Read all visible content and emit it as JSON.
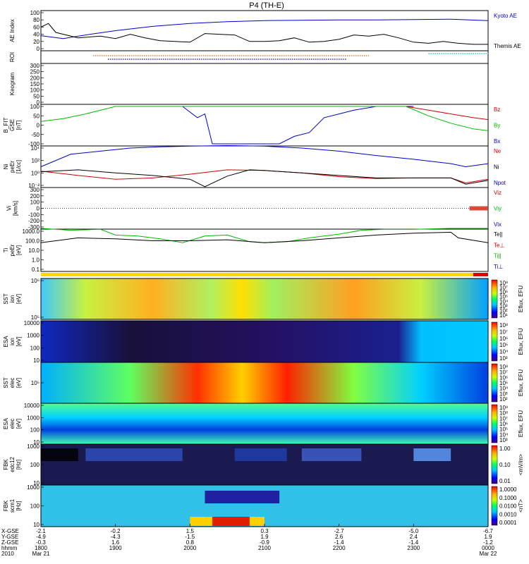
{
  "title": "P4 (TH-E)",
  "panels": [
    {
      "id": "ae",
      "ylabel": "AE Index",
      "yticks": [
        "100",
        "80",
        "60",
        "40",
        "20",
        "0"
      ],
      "legend": [
        {
          "label": "Kyoto AE",
          "color": "#0000cc"
        },
        {
          "label": "Themis AE",
          "color": "#000000"
        }
      ]
    },
    {
      "id": "roi",
      "ylabel": "ROI",
      "yticks": [],
      "legend": []
    },
    {
      "id": "kgram",
      "ylabel": "Keogram",
      "yticks": [
        "300",
        "250",
        "200",
        "150",
        "100",
        "50",
        "0"
      ],
      "legend": []
    },
    {
      "id": "bfit",
      "ylabel": "B_FIT\nGSE\n[nT]",
      "yticks": [
        "100",
        "50",
        "0",
        "-50",
        "-100"
      ],
      "legend": [
        {
          "label": "Bz",
          "color": "#cc0000"
        },
        {
          "label": "By",
          "color": "#00bb00"
        },
        {
          "label": "Bx",
          "color": "#0000cc"
        }
      ]
    },
    {
      "id": "ni",
      "ylabel": "Ni\npeEr\n[1/cc]",
      "yticks": [
        "10⁴",
        "10²",
        "10⁰",
        "10⁻²"
      ],
      "legend": [
        {
          "label": "Ne",
          "color": "#cc0000"
        },
        {
          "label": "Ni",
          "color": "#000000"
        },
        {
          "label": "Npot",
          "color": "#0000cc"
        }
      ]
    },
    {
      "id": "vi",
      "ylabel": "Vi\n[km/s]",
      "yticks": [
        "300",
        "200",
        "100",
        "0",
        "-100",
        "-200",
        "-300"
      ],
      "legend": [
        {
          "label": "Viz",
          "color": "#cc0000"
        },
        {
          "label": "Viy",
          "color": "#00bb00"
        },
        {
          "label": "Vix",
          "color": "#0000cc"
        }
      ]
    },
    {
      "id": "ti",
      "ylabel": "Ti\npeEr\n[eV]",
      "yticks": [
        "1000.0",
        "100.0",
        "10.0",
        "1.0",
        "0.1"
      ],
      "legend": [
        {
          "label": "Te||",
          "color": "#000000"
        },
        {
          "label": "Te⊥",
          "color": "#cc0000"
        },
        {
          "label": "Ti||",
          "color": "#00bb00"
        },
        {
          "label": "Ti⊥",
          "color": "#0000cc"
        }
      ]
    },
    {
      "id": "sst_i",
      "ylabel": "SST\nion\n[eV]",
      "yticks": [
        "10⁶",
        "10⁵"
      ],
      "colorbar": "Eflux, EFU",
      "cbticks": [
        "10⁸",
        "10⁷",
        "10⁶",
        "10⁵",
        "10⁴",
        "10³",
        "10²",
        "10¹"
      ]
    },
    {
      "id": "esa_i",
      "ylabel": "ESA\nion\n[eV]",
      "yticks": [
        "10000",
        "1000",
        "100",
        "10"
      ],
      "colorbar": "Eflux, EFU",
      "cbticks": [
        "10⁸",
        "10⁷",
        "10⁶",
        "10⁵",
        "10⁴",
        "10³"
      ]
    },
    {
      "id": "sst_e",
      "ylabel": "SST\nelec\n[eV]",
      "yticks": [
        "10⁵"
      ],
      "colorbar": "Eflux, EFU",
      "cbticks": [
        "10⁸",
        "10⁷",
        "10⁶",
        "10⁵",
        "10⁴",
        "10³",
        "10²"
      ]
    },
    {
      "id": "esa_e",
      "ylabel": "ESA\nelec\n[eV]",
      "yticks": [
        "10000",
        "1000",
        "100",
        "10"
      ],
      "colorbar": "Eflux, EFU",
      "cbticks": [
        "10⁹",
        "10⁸",
        "10⁷",
        "10⁶",
        "10⁵",
        "10⁴",
        "10³"
      ]
    },
    {
      "id": "fbk_e",
      "ylabel": "FBK\nedc12\n[Hz]",
      "yticks": [
        "1000",
        "100",
        "10"
      ],
      "colorbar": "<mV/m>",
      "cbticks": [
        "1.00",
        "0.10",
        "0.01"
      ]
    },
    {
      "id": "fbk_b",
      "ylabel": "FBK\nscm1\n[Hz]",
      "yticks": [
        "1000",
        "100",
        "10"
      ],
      "colorbar": "<nT>",
      "cbticks": [
        "1.0000",
        "0.1000",
        "0.0100",
        "0.0010",
        "0.0001"
      ]
    }
  ],
  "xaxis": {
    "row_labels": [
      "X-GSE",
      "Y-GSE",
      "Z-GSE",
      "hhmm",
      "2010"
    ],
    "ticks": [
      {
        "v": [
          "-2.1",
          "-4.9",
          "-0.3",
          "1800",
          "Mar 21"
        ]
      },
      {
        "v": [
          "-0.2",
          "-4.3",
          "1.6",
          "1900",
          ""
        ]
      },
      {
        "v": [
          "1.5",
          "-1.5",
          "0.8",
          "2000",
          ""
        ]
      },
      {
        "v": [
          "0.3",
          "1.9",
          "-0.9",
          "2100",
          ""
        ]
      },
      {
        "v": [
          "-2.7",
          "2.6",
          "-1.4",
          "2200",
          ""
        ]
      },
      {
        "v": [
          "-5.0",
          "2.4",
          "-1.4",
          "2300",
          ""
        ]
      },
      {
        "v": [
          "-6.7",
          "1.9",
          "-1.2",
          "0000",
          "Mar 22"
        ]
      }
    ]
  },
  "chart_data": {
    "type": "line",
    "title": "P4 (TH-E)",
    "x_hours": [
      18,
      19,
      20,
      21,
      22,
      23,
      24
    ],
    "x_tick_labels": [
      "1800",
      "1900",
      "2000",
      "2100",
      "2200",
      "2300",
      "0000"
    ],
    "series": [
      {
        "name": "Kyoto AE",
        "panel": "ae",
        "x": [
          18.0,
          18.3,
          18.6,
          19.0,
          19.5,
          20.0,
          20.5,
          21.0,
          21.5,
          22.0,
          22.5,
          23.0,
          23.5,
          24.0
        ],
        "y": [
          36,
          28,
          38,
          50,
          62,
          70,
          75,
          78,
          79,
          80,
          80,
          81,
          82,
          78
        ]
      },
      {
        "name": "Themis AE",
        "panel": "ae",
        "x": [
          18.0,
          18.1,
          18.2,
          18.5,
          18.8,
          19.0,
          19.2,
          19.4,
          19.6,
          19.8,
          20.0,
          20.2,
          20.4,
          20.6,
          20.8,
          21.0,
          21.2,
          21.4,
          21.6,
          21.8,
          22.0,
          22.2,
          22.4,
          22.6,
          22.8,
          23.0,
          23.2,
          23.4,
          23.6,
          23.8,
          24.0
        ],
        "y": [
          60,
          70,
          45,
          30,
          35,
          28,
          40,
          30,
          22,
          20,
          18,
          42,
          40,
          38,
          20,
          20,
          22,
          30,
          18,
          20,
          26,
          38,
          35,
          40,
          30,
          18,
          15,
          20,
          15,
          12,
          12
        ]
      },
      {
        "name": "Bx",
        "panel": "bfit",
        "x": [
          19.9,
          20.1,
          20.2,
          20.3,
          20.5,
          20.7,
          21.2,
          21.4,
          21.6,
          21.8,
          22.0,
          22.2,
          22.5,
          23.0
        ],
        "y": [
          100,
          40,
          60,
          -100,
          -100,
          -100,
          -100,
          -60,
          -40,
          40,
          60,
          80,
          100,
          100
        ]
      },
      {
        "name": "By",
        "panel": "bfit",
        "x": [
          18.0,
          18.3,
          18.6,
          19.0,
          22.9,
          23.2,
          23.5,
          23.8,
          24.0
        ],
        "y": [
          20,
          35,
          60,
          100,
          100,
          50,
          10,
          -20,
          -30
        ]
      },
      {
        "name": "Bz",
        "panel": "bfit",
        "x": [
          22.9,
          23.2,
          23.5,
          23.8,
          24.0
        ],
        "y": [
          100,
          80,
          60,
          40,
          30
        ]
      },
      {
        "name": "Npot",
        "panel": "ni",
        "x": [
          18.0,
          18.4,
          18.8,
          19.2,
          19.6,
          20.0,
          20.5,
          21.0,
          21.5,
          22.0,
          22.5,
          23.0,
          23.5,
          23.7,
          24.0
        ],
        "y": [
          1,
          3,
          3.5,
          4,
          4.2,
          4.3,
          4.4,
          4.3,
          4.0,
          3.5,
          2.8,
          2.2,
          1.5,
          1.0,
          1.5
        ]
      },
      {
        "name": "Ne",
        "panel": "ni",
        "x": [
          18.0,
          18.5,
          19.0,
          19.5,
          20.0,
          20.5,
          21.0,
          21.5,
          22.0,
          22.5,
          23.0,
          23.5,
          23.7,
          24.0
        ],
        "y": [
          0.3,
          -0.4,
          -1.0,
          -0.8,
          -0.2,
          0.5,
          0.4,
          0,
          -0.6,
          -0.9,
          -0.8,
          -0.8,
          -1.6,
          -1.0
        ]
      },
      {
        "name": "Ni",
        "panel": "ni",
        "x": [
          18.0,
          18.5,
          19.0,
          19.5,
          20.0,
          20.2,
          20.5,
          20.8,
          21.0,
          21.5,
          22.0,
          22.5,
          23.0,
          23.5,
          23.7,
          24.0
        ],
        "y": [
          0.2,
          0.5,
          0,
          -0.4,
          -1.0,
          -2.2,
          -0.5,
          0.5,
          0.4,
          0.0,
          -0.4,
          -0.8,
          -0.8,
          -0.8,
          -1.8,
          -1.2
        ]
      },
      {
        "name": "Ti||",
        "panel": "ti",
        "x": [
          18.0,
          18.4,
          18.8,
          19.0,
          19.3,
          19.6,
          19.9,
          20.2,
          20.5,
          20.8,
          21.0,
          21.3,
          21.6,
          22.0,
          22.3,
          22.6,
          23.0,
          23.5,
          24.0
        ],
        "y": [
          3.3,
          3.1,
          3.2,
          2.6,
          2.5,
          2.2,
          1.8,
          2.5,
          2.6,
          1.9,
          1.8,
          1.9,
          2.3,
          2.7,
          3.1,
          3.2,
          3.2,
          3.3,
          3.3
        ]
      },
      {
        "name": "Te||",
        "panel": "ti",
        "x": [
          18.0,
          18.5,
          19.0,
          19.5,
          20.0,
          20.5,
          21.0,
          21.5,
          22.0,
          22.5,
          23.0,
          23.5,
          23.6,
          24.0
        ],
        "y": [
          1.8,
          2.3,
          2.2,
          2.0,
          2.0,
          2.1,
          1.8,
          2.0,
          2.3,
          2.6,
          2.8,
          2.9,
          2.3,
          1.8
        ]
      }
    ],
    "xlabel": "hhmm",
    "panels_ylabel": [
      "AE Index",
      "ROI",
      "Keogram",
      "B_FIT",
      "Ni",
      "Vi",
      "Ti",
      "SST",
      "ESA",
      "SST",
      "ESA",
      "FBK",
      "FBK"
    ]
  }
}
